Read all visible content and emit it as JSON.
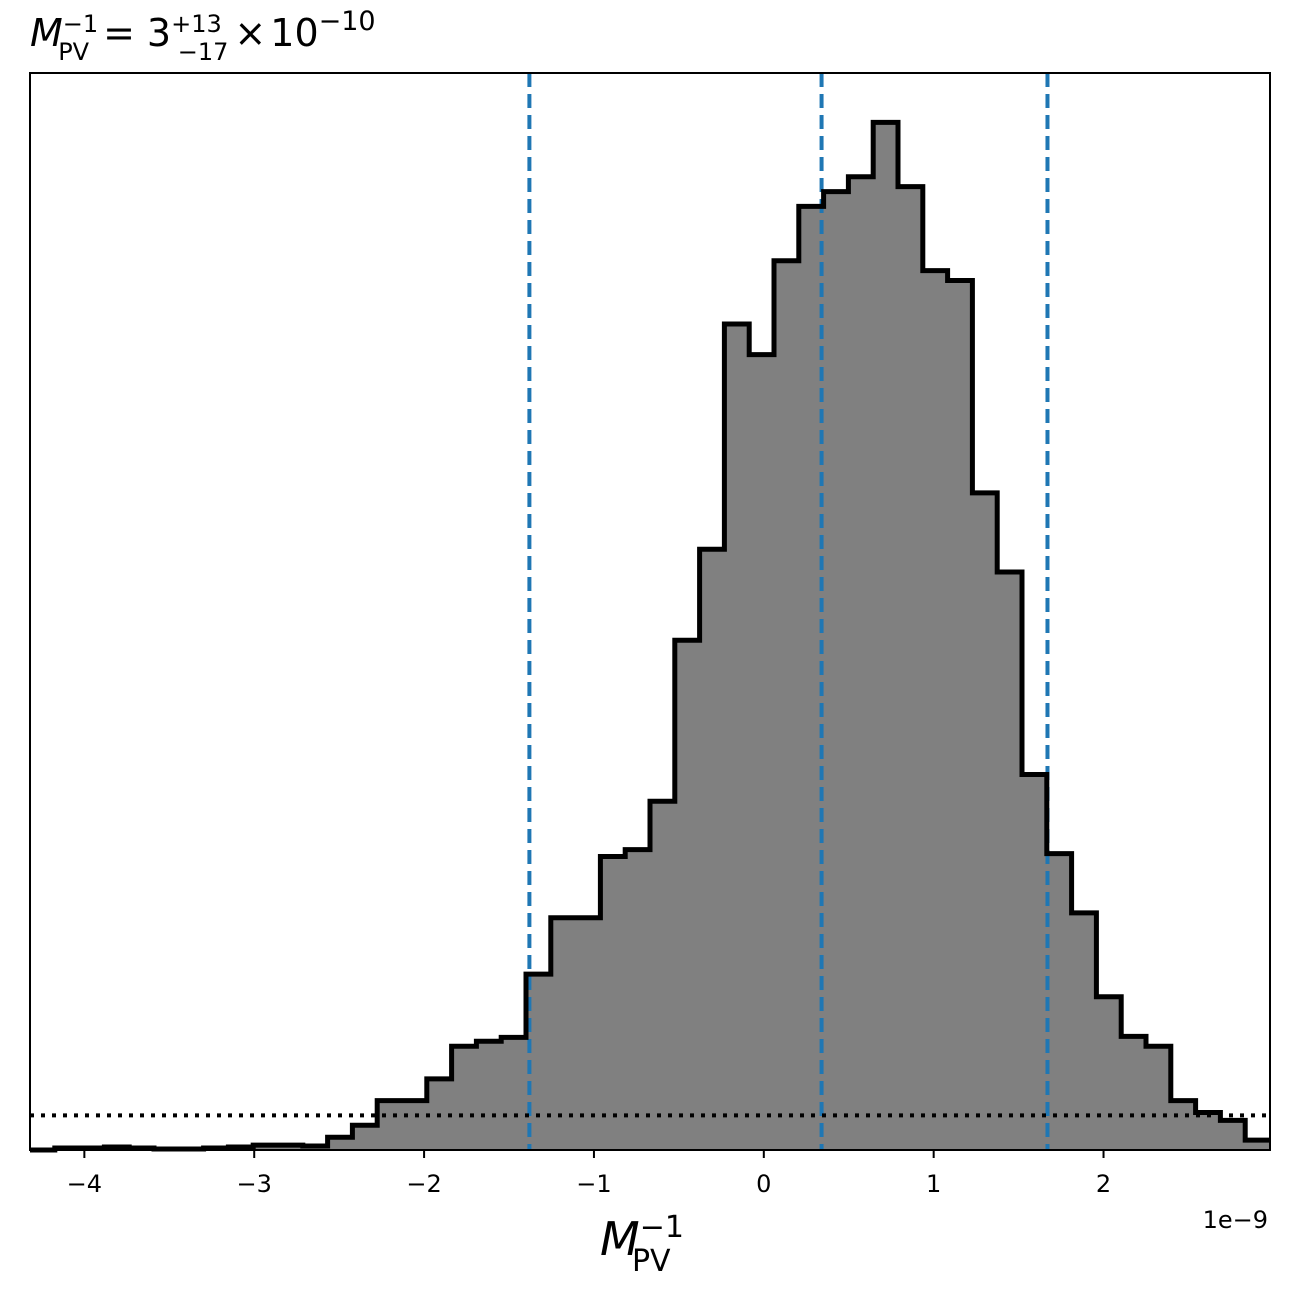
{
  "chart_data": {
    "type": "bar",
    "title": {
      "symbol": "M",
      "symbol_sup": "−1",
      "symbol_sub": "PV",
      "equals": "=",
      "value": "3",
      "err_plus": "+13",
      "err_minus": "−17",
      "times": "×",
      "base": "10",
      "exponent": "−10"
    },
    "xlabel": {
      "symbol": "M",
      "sup": "−1",
      "sub": "PV"
    },
    "ylabel": "",
    "offset_label": "1e−9",
    "xlim": [
      -4.32,
      2.98
    ],
    "ylim": [
      0,
      1090
    ],
    "xticks": [
      {
        "value": -4,
        "label": "−4"
      },
      {
        "value": -3,
        "label": "−3"
      },
      {
        "value": -2,
        "label": "−2"
      },
      {
        "value": -1,
        "label": "−1"
      },
      {
        "value": 0,
        "label": "0"
      },
      {
        "value": 1,
        "label": "1"
      },
      {
        "value": 2,
        "label": "2"
      }
    ],
    "bin_edges": [
      -4.32,
      -4.174,
      -4.028,
      -3.882,
      -3.736,
      -3.59,
      -3.444,
      -3.298,
      -3.152,
      -3.006,
      -2.86,
      -2.714,
      -2.568,
      -2.422,
      -2.276,
      -2.13,
      -1.984,
      -1.838,
      -1.692,
      -1.546,
      -1.4,
      -1.254,
      -1.108,
      -0.962,
      -0.816,
      -0.67,
      -0.524,
      -0.378,
      -0.232,
      -0.086,
      0.06,
      0.206,
      0.352,
      0.498,
      0.644,
      0.79,
      0.936,
      1.082,
      1.228,
      1.374,
      1.52,
      1.666,
      1.812,
      1.958,
      2.104,
      2.25,
      2.396,
      2.542,
      2.688,
      2.834,
      2.98
    ],
    "counts": [
      0,
      2,
      2,
      3,
      2,
      1,
      1,
      2,
      3,
      5,
      5,
      4,
      13,
      25,
      50,
      50,
      72,
      105,
      110,
      114,
      178,
      235,
      235,
      297,
      304,
      353,
      516,
      608,
      836,
      805,
      900,
      955,
      970,
      985,
      1040,
      975,
      890,
      880,
      665,
      585,
      380,
      300,
      240,
      155,
      115,
      105,
      50,
      38,
      30,
      10
    ],
    "fill_color": "#808080",
    "edge_color": "#000000",
    "vlines": [
      {
        "x": -1.38,
        "style": "dashed",
        "color": "#1f77b4"
      },
      {
        "x": 0.34,
        "style": "dashed",
        "color": "#1f77b4"
      },
      {
        "x": 1.67,
        "style": "dashed",
        "color": "#1f77b4"
      }
    ],
    "hline": {
      "y": 35,
      "style": "dotted",
      "color": "#000000"
    },
    "grid": false,
    "legend": "none"
  }
}
